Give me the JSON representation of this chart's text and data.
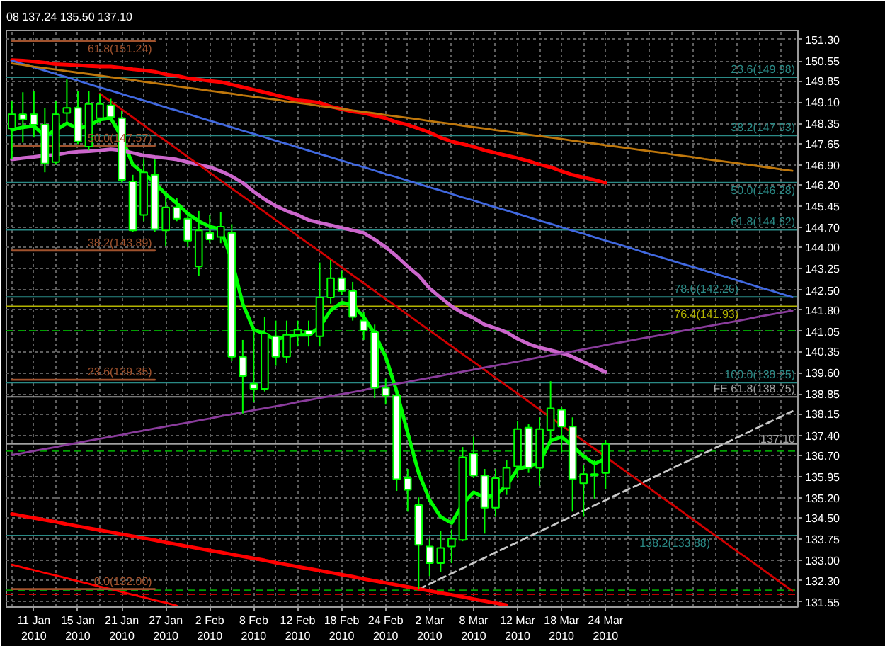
{
  "chart_data": {
    "type": "candlestick",
    "title": "08 137.24 135.50 137.10",
    "categories": [
      null,
      null,
      "11 Jan 2010",
      null,
      null,
      null,
      "15 Jan 2010",
      null,
      null,
      null,
      "21 Jan 2010",
      null,
      null,
      null,
      "27 Jan 2010",
      null,
      null,
      null,
      "2 Feb 2010",
      null,
      null,
      null,
      "8 Feb 2010",
      null,
      null,
      null,
      "12 Feb 2010",
      null,
      null,
      null,
      "18 Feb 2010",
      null,
      null,
      null,
      "24 Feb 2010",
      null,
      null,
      null,
      "2 Mar 2010",
      null,
      null,
      null,
      "8 Mar 2010",
      null,
      null,
      null,
      "12 Mar 2010",
      null,
      null,
      null,
      "18 Mar 2010",
      null,
      null,
      null,
      "24 Mar 2010",
      null,
      null,
      null,
      null,
      null,
      null,
      null,
      null,
      null,
      null,
      null,
      null,
      null,
      null,
      null,
      null,
      null
    ],
    "ohlc": [
      [
        148.18,
        149.13,
        147.09,
        148.68
      ],
      [
        148.68,
        149.45,
        147.68,
        148.49
      ],
      [
        148.68,
        149.49,
        147.86,
        148.31
      ],
      [
        148.31,
        148.9,
        146.64,
        146.95
      ],
      [
        147.0,
        149.13,
        146.91,
        148.68
      ],
      [
        148.72,
        149.9,
        148.31,
        148.9
      ],
      [
        148.9,
        149.49,
        147.63,
        147.72
      ],
      [
        147.54,
        149.49,
        147.41,
        149.04
      ],
      [
        148.54,
        149.4,
        148.36,
        149.04
      ],
      [
        148.99,
        149.22,
        148.45,
        148.58
      ],
      [
        148.54,
        148.81,
        146.27,
        146.37
      ],
      [
        146.32,
        146.55,
        144.55,
        144.6
      ],
      [
        145.14,
        147.09,
        144.92,
        146.64
      ],
      [
        146.55,
        147.09,
        144.55,
        144.64
      ],
      [
        144.6,
        145.87,
        144.05,
        145.41
      ],
      [
        145.41,
        145.73,
        144.92,
        145.01
      ],
      [
        145.01,
        145.19,
        144.01,
        144.24
      ],
      [
        143.33,
        145.28,
        143.01,
        144.6
      ],
      [
        144.51,
        145.14,
        144.15,
        144.28
      ],
      [
        144.37,
        145.23,
        144.15,
        144.73
      ],
      [
        144.51,
        144.82,
        140.02,
        140.16
      ],
      [
        140.16,
        140.75,
        138.17,
        139.48
      ],
      [
        139.21,
        141.2,
        138.57,
        139.03
      ],
      [
        139.03,
        141.56,
        138.94,
        140.97
      ],
      [
        140.88,
        141.43,
        139.84,
        140.16
      ],
      [
        140.16,
        141.43,
        139.93,
        140.93
      ],
      [
        140.93,
        141.43,
        140.52,
        141.11
      ],
      [
        141.07,
        141.43,
        140.52,
        140.93
      ],
      [
        140.88,
        143.47,
        140.52,
        142.24
      ],
      [
        142.24,
        143.56,
        142.02,
        142.92
      ],
      [
        142.92,
        143.19,
        142.33,
        142.47
      ],
      [
        142.47,
        142.79,
        141.43,
        141.56
      ],
      [
        141.43,
        141.74,
        140.75,
        141.07
      ],
      [
        141.02,
        141.29,
        138.71,
        139.07
      ],
      [
        139.07,
        139.39,
        138.48,
        138.8
      ],
      [
        138.8,
        139.07,
        135.45,
        135.86
      ],
      [
        135.9,
        136.22,
        134.72,
        135.49
      ],
      [
        134.95,
        135.22,
        132.0,
        133.55
      ],
      [
        133.5,
        133.77,
        132.46,
        132.91
      ],
      [
        132.91,
        134.04,
        132.59,
        133.45
      ],
      [
        133.5,
        134.09,
        132.91,
        133.77
      ],
      [
        133.73,
        136.99,
        133.68,
        136.63
      ],
      [
        136.76,
        137.35,
        135.9,
        135.99
      ],
      [
        135.99,
        136.22,
        133.95,
        134.86
      ],
      [
        134.86,
        136.22,
        134.54,
        135.9
      ],
      [
        135.54,
        136.54,
        135.31,
        136.26
      ],
      [
        136.31,
        137.89,
        135.9,
        137.62
      ],
      [
        137.67,
        137.8,
        136.08,
        136.26
      ],
      [
        136.26,
        138.03,
        135.63,
        137.62
      ],
      [
        137.58,
        139.3,
        137.26,
        138.35
      ],
      [
        138.3,
        138.39,
        136.81,
        137.71
      ],
      [
        137.71,
        138.03,
        134.72,
        135.86
      ],
      [
        135.72,
        136.35,
        134.54,
        136.04
      ],
      [
        136.04,
        136.54,
        135.18,
        135.99
      ],
      [
        136.08,
        137.24,
        135.5,
        137.1
      ],
      null,
      null,
      null,
      null,
      null,
      null,
      null,
      null,
      null,
      null,
      null,
      null,
      null,
      null,
      null,
      null,
      null
    ],
    "series": [
      {
        "type": "line",
        "color": "#00ff00",
        "values": [
          148.13,
          148.22,
          148.27,
          147.91,
          148.13,
          148.36,
          148.18,
          148.27,
          148.49,
          148.54,
          147.86,
          146.91,
          146.59,
          146.27,
          145.87,
          145.55,
          145.19,
          144.92,
          144.73,
          144.64,
          143.56,
          142.02,
          141.11,
          140.97,
          140.75,
          140.88,
          140.93,
          140.93,
          141.2,
          141.79,
          142.06,
          141.97,
          141.56,
          140.97,
          140.16,
          138.94,
          137.49,
          136.08,
          135.13,
          134.54,
          134.32,
          134.99,
          135.4,
          135.22,
          135.31,
          135.63,
          136.22,
          136.31,
          136.44,
          137.21,
          137.35,
          137.03,
          136.67,
          136.4,
          136.58,
          null,
          null,
          null,
          null,
          null,
          null,
          null,
          null,
          null,
          null,
          null,
          null,
          null,
          null,
          null,
          null,
          null
        ]
      },
      {
        "type": "line",
        "color": "#cc66cc",
        "values": [
          147.09,
          147.14,
          147.18,
          147.23,
          147.25,
          147.32,
          147.36,
          147.38,
          147.41,
          147.45,
          147.41,
          147.32,
          147.23,
          147.18,
          147.14,
          147.09,
          147.0,
          146.91,
          146.82,
          146.68,
          146.5,
          146.27,
          145.96,
          145.69,
          145.46,
          145.28,
          145.14,
          144.96,
          144.87,
          144.78,
          144.69,
          144.6,
          144.51,
          144.28,
          144.01,
          143.69,
          143.33,
          143.01,
          142.56,
          142.24,
          141.93,
          141.7,
          141.52,
          141.29,
          141.16,
          141.02,
          140.79,
          140.61,
          140.48,
          140.39,
          140.29,
          140.16,
          139.98,
          139.8,
          139.62,
          null,
          null,
          null,
          null,
          null,
          null,
          null,
          null,
          null,
          null,
          null,
          null,
          null,
          null,
          null,
          null,
          null
        ]
      },
      {
        "type": "line",
        "color": "#ff0000",
        "values": [
          150.58,
          150.56,
          150.53,
          150.49,
          150.44,
          150.42,
          150.4,
          150.37,
          150.35,
          150.35,
          150.31,
          150.26,
          150.22,
          150.17,
          150.08,
          150.03,
          149.94,
          149.9,
          149.85,
          149.81,
          149.72,
          149.63,
          149.54,
          149.45,
          149.35,
          149.26,
          149.17,
          149.13,
          149.08,
          148.95,
          148.86,
          148.77,
          148.72,
          148.63,
          148.54,
          148.4,
          148.31,
          148.18,
          148.04,
          147.86,
          147.72,
          147.63,
          147.54,
          147.41,
          147.32,
          147.23,
          147.14,
          147.04,
          146.91,
          146.82,
          146.68,
          146.55,
          146.46,
          146.37,
          146.27,
          null,
          null,
          null,
          null,
          null,
          null,
          null,
          null,
          null,
          null,
          null,
          null,
          null,
          null,
          null,
          null,
          null
        ]
      },
      {
        "type": "line",
        "color": "#4169e1",
        "values": [
          150.56,
          150.44,
          150.33,
          150.21,
          150.09,
          149.98,
          149.86,
          149.74,
          149.62,
          149.51,
          149.39,
          149.27,
          149.16,
          149.04,
          148.92,
          148.81,
          148.69,
          148.57,
          148.45,
          148.34,
          148.22,
          148.1,
          147.99,
          147.87,
          147.75,
          147.64,
          147.52,
          147.4,
          147.28,
          147.17,
          147.05,
          146.93,
          146.82,
          146.7,
          146.58,
          146.47,
          146.35,
          146.23,
          146.11,
          146.0,
          145.88,
          145.76,
          145.65,
          145.53,
          145.41,
          145.3,
          145.18,
          145.06,
          144.94,
          144.83,
          144.71,
          144.59,
          144.48,
          144.36,
          144.24,
          144.13,
          144.01,
          143.89,
          143.77,
          143.66,
          143.54,
          143.42,
          143.31,
          143.19,
          143.07,
          142.96,
          142.84,
          142.72,
          142.6,
          142.49,
          142.37,
          142.25
        ]
      },
      {
        "type": "line",
        "color": "#c0780c",
        "values": [
          150.46,
          150.41,
          150.35,
          150.3,
          150.25,
          150.19,
          150.14,
          150.09,
          150.04,
          149.98,
          149.93,
          149.88,
          149.82,
          149.77,
          149.72,
          149.66,
          149.61,
          149.56,
          149.5,
          149.45,
          149.4,
          149.34,
          149.29,
          149.24,
          149.19,
          149.13,
          149.08,
          149.03,
          148.97,
          148.92,
          148.87,
          148.81,
          148.76,
          148.71,
          148.65,
          148.6,
          148.55,
          148.5,
          148.44,
          148.39,
          148.34,
          148.28,
          148.23,
          148.18,
          148.12,
          148.07,
          148.02,
          147.96,
          147.91,
          147.86,
          147.81,
          147.75,
          147.7,
          147.65,
          147.59,
          147.54,
          147.49,
          147.43,
          147.38,
          147.33,
          147.27,
          147.22,
          147.17,
          147.11,
          147.06,
          147.01,
          146.96,
          146.9,
          146.85,
          146.8,
          146.74,
          146.69
        ]
      },
      {
        "type": "line",
        "color": "#d00000",
        "values": [
          null,
          null,
          null,
          null,
          null,
          null,
          null,
          null,
          149.4,
          149.12,
          148.85,
          148.57,
          148.29,
          148.01,
          147.74,
          147.46,
          147.18,
          146.91,
          146.63,
          146.35,
          146.07,
          145.8,
          145.52,
          145.24,
          144.96,
          144.69,
          144.41,
          144.13,
          143.86,
          143.58,
          143.3,
          143.02,
          142.75,
          142.47,
          142.19,
          141.92,
          141.64,
          141.36,
          141.08,
          140.81,
          140.53,
          140.25,
          139.98,
          139.7,
          139.42,
          139.14,
          138.87,
          138.59,
          138.31,
          138.03,
          137.76,
          137.48,
          137.2,
          136.93,
          136.65,
          136.37,
          136.09,
          135.82,
          135.54,
          135.26,
          134.99,
          134.71,
          134.43,
          134.15,
          133.88,
          133.6,
          133.32,
          133.05,
          132.77,
          132.49,
          132.21,
          131.94
        ]
      },
      {
        "type": "line",
        "color": "#8a3c9c",
        "values": [
          136.71,
          136.78,
          136.85,
          136.92,
          136.99,
          137.07,
          137.14,
          137.21,
          137.28,
          137.35,
          137.42,
          137.5,
          137.57,
          137.64,
          137.71,
          137.78,
          137.85,
          137.92,
          137.99,
          138.07,
          138.14,
          138.21,
          138.28,
          138.35,
          138.42,
          138.49,
          138.57,
          138.64,
          138.71,
          138.78,
          138.85,
          138.92,
          138.99,
          139.07,
          139.14,
          139.21,
          139.28,
          139.35,
          139.42,
          139.49,
          139.57,
          139.64,
          139.71,
          139.78,
          139.85,
          139.92,
          139.99,
          140.07,
          140.14,
          140.21,
          140.28,
          140.35,
          140.42,
          140.49,
          140.57,
          140.64,
          140.71,
          140.78,
          140.85,
          140.92,
          140.99,
          141.07,
          141.14,
          141.21,
          141.28,
          141.35,
          141.42,
          141.49,
          141.57,
          141.64,
          141.71,
          141.78
        ]
      },
      {
        "type": "line",
        "color": "#c8c8c8",
        "line_style": "dashed",
        "values": [
          null,
          null,
          null,
          null,
          null,
          null,
          null,
          null,
          null,
          null,
          null,
          null,
          null,
          null,
          null,
          null,
          null,
          null,
          null,
          null,
          null,
          null,
          null,
          null,
          null,
          null,
          null,
          null,
          null,
          null,
          null,
          null,
          null,
          null,
          null,
          null,
          null,
          132.0,
          132.18,
          132.37,
          132.55,
          132.73,
          132.92,
          133.1,
          133.29,
          133.47,
          133.65,
          133.84,
          134.02,
          134.2,
          134.39,
          134.57,
          134.76,
          134.94,
          135.12,
          135.31,
          135.49,
          135.67,
          135.86,
          136.04,
          136.23,
          136.41,
          136.59,
          136.78,
          136.96,
          137.14,
          137.33,
          137.51,
          137.7,
          137.88,
          138.06,
          138.25
        ]
      },
      {
        "type": "line",
        "color": "#ff0000",
        "values": [
          134.64,
          134.57,
          134.5,
          134.43,
          134.36,
          134.28,
          134.21,
          134.14,
          134.07,
          134.0,
          133.93,
          133.86,
          133.79,
          133.72,
          133.64,
          133.57,
          133.5,
          133.43,
          133.36,
          133.29,
          133.22,
          133.15,
          133.08,
          133.01,
          132.93,
          132.86,
          132.79,
          132.72,
          132.65,
          132.58,
          132.51,
          132.44,
          132.36,
          132.29,
          132.22,
          132.15,
          132.08,
          132.01,
          131.94,
          131.87,
          131.8,
          131.73,
          131.65,
          131.58,
          131.51,
          131.44,
          null,
          null,
          null,
          null,
          null,
          null,
          null,
          null,
          null,
          null,
          null,
          null,
          null,
          null,
          null,
          null,
          null,
          null,
          null,
          null,
          null,
          null,
          null,
          null,
          null,
          null
        ]
      },
      {
        "type": "line",
        "color": "#ff0000",
        "values": [
          132.86,
          132.76,
          132.67,
          132.57,
          132.48,
          132.38,
          132.28,
          132.19,
          132.09,
          132.0,
          131.9,
          131.8,
          131.71,
          131.61,
          131.52,
          131.42,
          null,
          null,
          null,
          null,
          null,
          null,
          null,
          null,
          null,
          null,
          null,
          null,
          null,
          null,
          null,
          null,
          null,
          null,
          null,
          null,
          null,
          null,
          null,
          null,
          null,
          null,
          null,
          null,
          null,
          null,
          null,
          null,
          null,
          null,
          null,
          null,
          null,
          null,
          null,
          null,
          null,
          null,
          null,
          null,
          null,
          null,
          null,
          null,
          null,
          null,
          null,
          null,
          null,
          null,
          null,
          null
        ]
      },
      {
        "type": "line",
        "color": "#a0522d",
        "values": [
          151.24,
          151.24,
          151.24,
          151.24,
          151.24,
          151.24,
          151.24,
          151.24,
          151.24,
          151.24,
          151.24,
          151.24,
          151.24,
          151.24,
          null,
          null,
          null,
          null,
          null,
          null,
          null,
          null,
          null,
          null,
          null,
          null,
          null,
          null,
          null,
          null,
          null,
          null,
          null,
          null,
          null,
          null,
          null,
          null,
          null,
          null,
          null,
          null,
          null,
          null,
          null,
          null,
          null,
          null,
          null,
          null,
          null,
          null,
          null,
          null,
          null,
          null,
          null,
          null,
          null,
          null,
          null,
          null,
          null,
          null,
          null,
          null,
          null,
          null,
          null,
          null,
          null,
          null
        ]
      },
      {
        "type": "line",
        "color": "#a0522d",
        "values": [
          147.57,
          147.57,
          147.57,
          147.57,
          147.57,
          147.57,
          147.57,
          147.57,
          147.57,
          147.57,
          147.57,
          147.57,
          147.57,
          147.57,
          null,
          null,
          null,
          null,
          null,
          null,
          null,
          null,
          null,
          null,
          null,
          null,
          null,
          null,
          null,
          null,
          null,
          null,
          null,
          null,
          null,
          null,
          null,
          null,
          null,
          null,
          null,
          null,
          null,
          null,
          null,
          null,
          null,
          null,
          null,
          null,
          null,
          null,
          null,
          null,
          null,
          null,
          null,
          null,
          null,
          null,
          null,
          null,
          null,
          null,
          null,
          null,
          null,
          null,
          null,
          null,
          null,
          null
        ]
      },
      {
        "type": "line",
        "color": "#a0522d",
        "values": [
          143.89,
          143.89,
          143.89,
          143.89,
          143.89,
          143.89,
          143.89,
          143.89,
          143.89,
          143.89,
          143.89,
          143.89,
          143.89,
          143.89,
          null,
          null,
          null,
          null,
          null,
          null,
          null,
          null,
          null,
          null,
          null,
          null,
          null,
          null,
          null,
          null,
          null,
          null,
          null,
          null,
          null,
          null,
          null,
          null,
          null,
          null,
          null,
          null,
          null,
          null,
          null,
          null,
          null,
          null,
          null,
          null,
          null,
          null,
          null,
          null,
          null,
          null,
          null,
          null,
          null,
          null,
          null,
          null,
          null,
          null,
          null,
          null,
          null,
          null,
          null,
          null,
          null,
          null
        ]
      },
      {
        "type": "line",
        "color": "#a0522d",
        "values": [
          139.35,
          139.35,
          139.35,
          139.35,
          139.35,
          139.35,
          139.35,
          139.35,
          139.35,
          139.35,
          139.35,
          139.35,
          139.35,
          139.35,
          null,
          null,
          null,
          null,
          null,
          null,
          null,
          null,
          null,
          null,
          null,
          null,
          null,
          null,
          null,
          null,
          null,
          null,
          null,
          null,
          null,
          null,
          null,
          null,
          null,
          null,
          null,
          null,
          null,
          null,
          null,
          null,
          null,
          null,
          null,
          null,
          null,
          null,
          null,
          null,
          null,
          null,
          null,
          null,
          null,
          null,
          null,
          null,
          null,
          null,
          null,
          null,
          null,
          null,
          null,
          null,
          null,
          null
        ]
      },
      {
        "type": "line",
        "color": "#a0522d",
        "values": [
          132.0,
          132.0,
          132.0,
          132.0,
          132.0,
          132.0,
          132.0,
          132.0,
          132.0,
          132.0,
          132.0,
          132.0,
          132.0,
          132.0,
          null,
          null,
          null,
          null,
          null,
          null,
          null,
          null,
          null,
          null,
          null,
          null,
          null,
          null,
          null,
          null,
          null,
          null,
          null,
          null,
          null,
          null,
          null,
          null,
          null,
          null,
          null,
          null,
          null,
          null,
          null,
          null,
          null,
          null,
          null,
          null,
          null,
          null,
          null,
          null,
          null,
          null,
          null,
          null,
          null,
          null,
          null,
          null,
          null,
          null,
          null,
          null,
          null,
          null,
          null,
          null,
          null,
          null
        ]
      }
    ],
    "annotations": [
      {
        "text": "61.8(151.24)",
        "y": 151.24
      },
      {
        "text": "50.0(147.57)",
        "y": 147.57
      },
      {
        "text": "38.2(143.89)",
        "y": 143.89
      },
      {
        "text": "23.6(139.35)",
        "y": 139.35
      },
      {
        "text": "0.0(132.00)",
        "y": 132.0
      }
    ],
    "ref_lines": [
      {
        "axis": "y",
        "value": 149.98,
        "label": "23.6(149.98)",
        "color": "#2a8a86"
      },
      {
        "axis": "y",
        "value": 147.93,
        "label": "38.2(147.93)",
        "color": "#2a8a86"
      },
      {
        "axis": "y",
        "value": 146.28,
        "label": "50.0(146.28)",
        "color": "#2a8a86"
      },
      {
        "axis": "y",
        "value": 144.62,
        "label": "61.8(144.62)",
        "color": "#2a8a86"
      },
      {
        "axis": "y",
        "value": 142.26,
        "label": "78.6(142.26)",
        "color": "#2a8a86"
      },
      {
        "axis": "y",
        "value": 141.93,
        "label": "76.4(141.93)",
        "color": "#b4b400"
      },
      {
        "axis": "y",
        "value": 139.25,
        "label": "100.0(139.25)",
        "color": "#2a8a86"
      },
      {
        "axis": "y",
        "value": 138.75,
        "label": "FE 61.8(138.75)",
        "color": "#a0a0a0"
      },
      {
        "axis": "y",
        "value": 137.1,
        "label": "137.10",
        "color": "#a0a0a0"
      },
      {
        "axis": "y",
        "value": 133.88,
        "label": "138.2(133.88)",
        "color": "#2a8a86"
      },
      {
        "axis": "y",
        "value": 141.07,
        "color": "#00a000",
        "line_style": "dashed"
      },
      {
        "axis": "y",
        "value": 136.85,
        "color": "#00a000",
        "line_style": "dashed"
      },
      {
        "axis": "y",
        "value": 131.96,
        "color": "#00a000",
        "line_style": "dashed"
      },
      {
        "axis": "y",
        "value": 131.82,
        "color": "#c00000",
        "line_style": "dashed"
      }
    ],
    "ylim": [
      131.37,
      151.62
    ],
    "yticks": [
      {
        "value": 151.3,
        "label": "151.30"
      },
      {
        "value": 150.55,
        "label": "150.55"
      },
      {
        "value": 149.85,
        "label": "149.85"
      },
      {
        "value": 149.1,
        "label": "149.10"
      },
      {
        "value": 148.35,
        "label": "148.35"
      },
      {
        "value": 147.65,
        "label": "147.65"
      },
      {
        "value": 146.9,
        "label": "146.90"
      },
      {
        "value": 146.2,
        "label": "146.20"
      },
      {
        "value": 145.45,
        "label": "145.45"
      },
      {
        "value": 144.7,
        "label": "144.70"
      },
      {
        "value": 144.0,
        "label": "144.00"
      },
      {
        "value": 143.25,
        "label": "143.25"
      },
      {
        "value": 142.5,
        "label": "142.50"
      },
      {
        "value": 141.8,
        "label": "141.80"
      },
      {
        "value": 141.05,
        "label": "141.05"
      },
      {
        "value": 140.35,
        "label": "140.35"
      },
      {
        "value": 139.6,
        "label": "139.60"
      },
      {
        "value": 138.85,
        "label": "138.85"
      },
      {
        "value": 138.15,
        "label": "138.15"
      },
      {
        "value": 137.4,
        "label": "137.40"
      },
      {
        "value": 136.7,
        "label": "136.70"
      },
      {
        "value": 135.95,
        "label": "135.95"
      },
      {
        "value": 135.2,
        "label": "135.20"
      },
      {
        "value": 134.5,
        "label": "134.50"
      },
      {
        "value": 133.75,
        "label": "133.75"
      },
      {
        "value": 133.0,
        "label": "133.00"
      },
      {
        "value": 132.3,
        "label": "132.30"
      },
      {
        "value": 131.55,
        "label": "131.55"
      }
    ],
    "grid": true
  }
}
